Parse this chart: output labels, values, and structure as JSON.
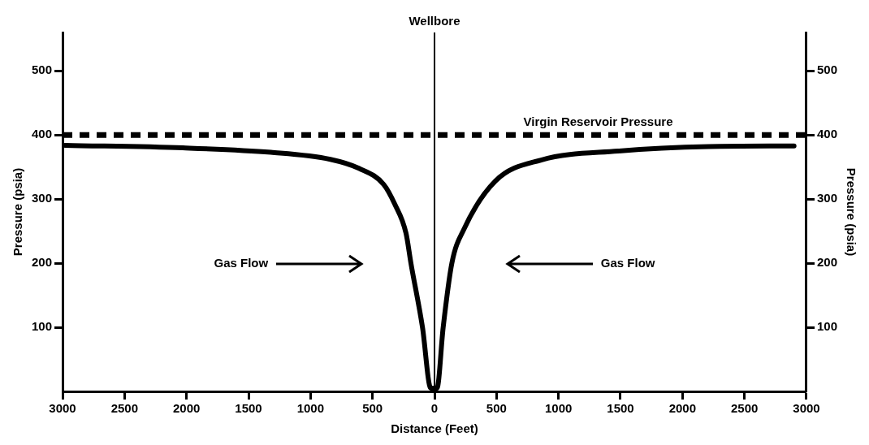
{
  "chart_data": {
    "type": "line",
    "xlabel": "Distance (Feet)",
    "ylabel": "Pressure (psia)",
    "y2label": "Pressure (psia)",
    "x": [
      -2980,
      -2030,
      -1320,
      -840,
      -610,
      -410,
      -320,
      -230,
      -190,
      -97,
      -30,
      20,
      70,
      140,
      240,
      490,
      860,
      1480,
      2210,
      2900
    ],
    "series": [
      {
        "color": "#000000",
        "values": [
          384,
          380,
          373,
          362,
          348,
          323,
          292,
          247,
          200,
          100,
          5,
          5,
          100,
          200,
          254,
          328,
          361,
          375,
          382,
          383
        ]
      }
    ],
    "xlim": [
      -3000,
      3000
    ],
    "xticks": [
      {
        "value": -3000,
        "label": "3000"
      },
      {
        "value": -2500,
        "label": "2500"
      },
      {
        "value": -2000,
        "label": "2000"
      },
      {
        "value": -1500,
        "label": "1500"
      },
      {
        "value": -1000,
        "label": "1000"
      },
      {
        "value": -500,
        "label": "500"
      },
      0,
      500,
      1000,
      1500,
      2000,
      2500,
      3000
    ],
    "ylim": [
      0,
      560
    ],
    "yticks": [
      100,
      200,
      300,
      400,
      500
    ],
    "y2lim": [
      0,
      560
    ],
    "y2ticks": [
      100,
      200,
      300,
      400,
      500
    ],
    "grid": false,
    "legend": false,
    "marker": "none",
    "line_style": "solid",
    "ref_lines": [
      {
        "axis": "y",
        "value": 400,
        "label": "Virgin Reservoir Pressure",
        "line_style": "dashed",
        "color": "#000000"
      },
      {
        "axis": "x",
        "value": 0,
        "label": "Wellbore",
        "line_style": "solid",
        "color": "#000000"
      }
    ],
    "annotations": [
      "Gas Flow",
      "Gas Flow"
    ]
  }
}
